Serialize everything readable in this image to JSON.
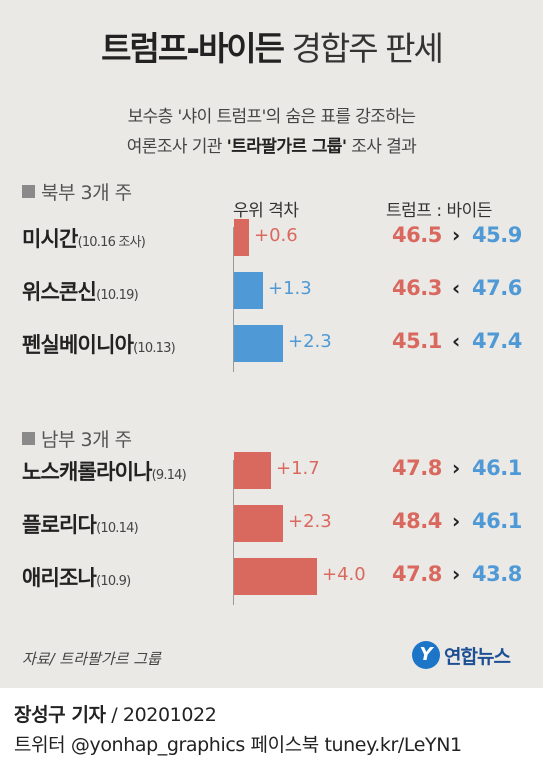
{
  "header": {
    "title_bold": "트럼프-바이든",
    "title_light": "경합주 판세",
    "subtitle_line1": "보수층 '샤이 트럼프'의 숨은 표를 강조하는",
    "subtitle_line2_pre": "여론조사 기관 ",
    "subtitle_line2_bold": "'트라팔가르 그룹'",
    "subtitle_line2_post": " 조사 결과"
  },
  "columns": {
    "gap_label": "우위 격차",
    "poll_label": "트럼프 : 바이든"
  },
  "colors": {
    "trump": "#d9695f",
    "biden": "#4f9ad6",
    "background": "#ebe9e6"
  },
  "chart_data": {
    "type": "bar",
    "groups": [
      {
        "label": "북부 3개 주",
        "states": [
          {
            "name": "미시간",
            "date": "(10.16 조사)",
            "gap_text": "+0.6",
            "gap": 0.6,
            "leader": "trump",
            "trump": "46.5",
            "biden": "45.9",
            "comparator": "›"
          },
          {
            "name": "위스콘신",
            "date": "(10.19)",
            "gap_text": "+1.3",
            "gap": 1.3,
            "leader": "biden",
            "trump": "46.3",
            "biden": "47.6",
            "comparator": "‹"
          },
          {
            "name": "펜실베이니아",
            "date": "(10.13)",
            "gap_text": "+2.3",
            "gap": 2.3,
            "leader": "biden",
            "trump": "45.1",
            "biden": "47.4",
            "comparator": "‹"
          }
        ]
      },
      {
        "label": "남부 3개 주",
        "states": [
          {
            "name": "노스캐롤라이나",
            "date": "(9.14)",
            "gap_text": "+1.7",
            "gap": 1.7,
            "leader": "trump",
            "trump": "47.8",
            "biden": "46.1",
            "comparator": "›"
          },
          {
            "name": "플로리다",
            "date": "(10.14)",
            "gap_text": "+2.3",
            "gap": 2.3,
            "leader": "trump",
            "trump": "48.4",
            "biden": "46.1",
            "comparator": "›"
          },
          {
            "name": "애리조나",
            "date": "(10.9)",
            "gap_text": "+4.0",
            "gap": 4.0,
            "leader": "trump",
            "trump": "47.8",
            "biden": "43.8",
            "comparator": "›"
          }
        ]
      }
    ]
  },
  "source": "자료/ 트라팔가르 그룹",
  "logo": {
    "mark": "Y",
    "text": "연합뉴스"
  },
  "footer": {
    "byline_bold": "장성구 기자",
    "byline_rest": " / 20201022",
    "social": "트위터 @yonhap_graphics  페이스북 tuney.kr/LeYN1"
  }
}
